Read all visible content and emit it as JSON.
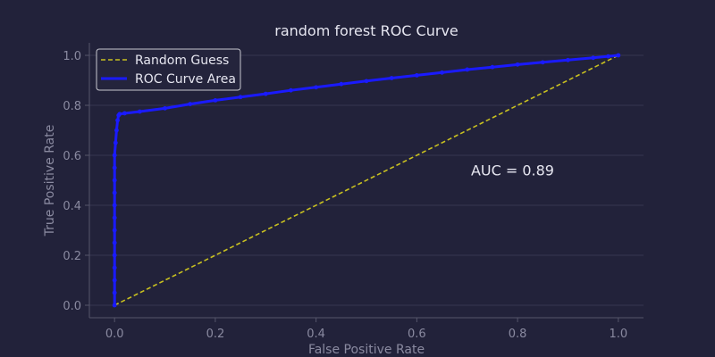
{
  "chart_data": {
    "type": "line",
    "title": "random forest ROC Curve",
    "xlabel": "False Positive Rate",
    "ylabel": "True Positive Rate",
    "xlim": [
      -0.05,
      1.05
    ],
    "ylim": [
      -0.05,
      1.05
    ],
    "xticks": [
      0.0,
      0.2,
      0.4,
      0.6,
      0.8,
      1.0
    ],
    "yticks": [
      0.0,
      0.2,
      0.4,
      0.6,
      0.8,
      1.0
    ],
    "xtick_labels": [
      "0.0",
      "0.2",
      "0.4",
      "0.6",
      "0.8",
      "1.0"
    ],
    "ytick_labels": [
      "0.0",
      "0.2",
      "0.4",
      "0.6",
      "0.8",
      "1.0"
    ],
    "grid": "horizontal",
    "legend_position": "top-left",
    "annotation": "AUC = 0.89",
    "annotation_at": {
      "x": 0.79,
      "y": 0.52
    },
    "series": [
      {
        "name": "Random Guess",
        "style": "dashed",
        "color": "#c8c020",
        "x": [
          0.0,
          1.0
        ],
        "y": [
          0.0,
          1.0
        ]
      },
      {
        "name": "ROC Curve Area",
        "style": "solid-markers",
        "color": "#1a1aff",
        "x": [
          0.0,
          0.0,
          0.0,
          0.0,
          0.0,
          0.0,
          0.0,
          0.0,
          0.0,
          0.0,
          0.0,
          0.0,
          0.0,
          0.002,
          0.004,
          0.006,
          0.008,
          0.01,
          0.02,
          0.05,
          0.1,
          0.15,
          0.2,
          0.25,
          0.3,
          0.35,
          0.4,
          0.45,
          0.5,
          0.55,
          0.6,
          0.65,
          0.7,
          0.75,
          0.8,
          0.85,
          0.9,
          0.95,
          0.98,
          1.0
        ],
        "y": [
          0.0,
          0.05,
          0.1,
          0.15,
          0.2,
          0.25,
          0.3,
          0.35,
          0.4,
          0.45,
          0.5,
          0.55,
          0.6,
          0.65,
          0.7,
          0.74,
          0.76,
          0.765,
          0.768,
          0.775,
          0.788,
          0.805,
          0.82,
          0.833,
          0.846,
          0.86,
          0.872,
          0.885,
          0.897,
          0.909,
          0.92,
          0.931,
          0.943,
          0.953,
          0.963,
          0.972,
          0.981,
          0.99,
          0.996,
          1.0
        ]
      }
    ]
  },
  "colors": {
    "background": "#22223a",
    "axis": "#55556a",
    "grid": "#363650",
    "legend_bg": "#24243c",
    "legend_border": "#c8c8d0"
  }
}
